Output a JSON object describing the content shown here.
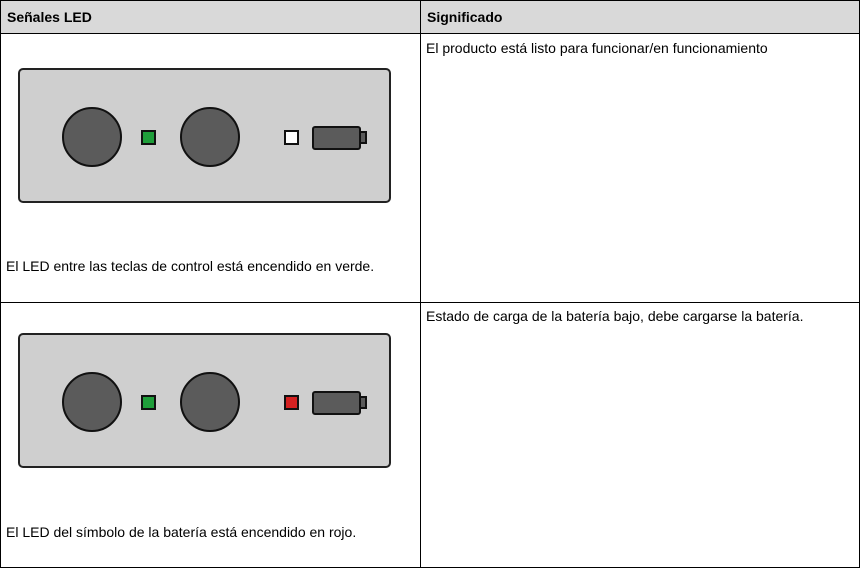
{
  "table": {
    "header": [
      "Señales LED",
      "Significado"
    ],
    "rows": [
      [
        "El LED entre las teclas de control está encendido en verde.",
        "El producto está listo para funcionar/en funcionamiento"
      ],
      [
        "El LED del símbolo de la batería está encendido en rojo.",
        "Estado de carga de la batería bajo, debe cargarse la batería."
      ]
    ]
  }
}
